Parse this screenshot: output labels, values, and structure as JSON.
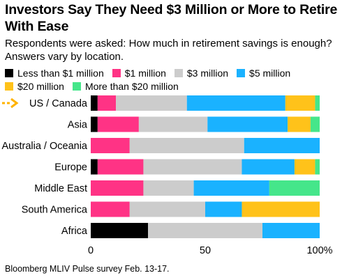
{
  "header": {
    "title": "Investors Say They Need $3 Million or More to Retire With Ease",
    "subtitle": "Respondents were asked: How much in retirement savings is enough? Answers vary by location."
  },
  "footer": {
    "source": "Bloomberg MLIV Pulse survey Feb. 13-17."
  },
  "chart_data": {
    "type": "bar",
    "orientation": "horizontal",
    "stacked": true,
    "title": "Investors Say They Need $3 Million or More to Retire With Ease",
    "subtitle": "Respondents were asked: How much in retirement savings is enough? Answers vary by location.",
    "xlabel": "",
    "ylabel": "",
    "xlim": [
      0,
      100
    ],
    "x_ticks": [
      "0",
      "50",
      "100%"
    ],
    "grid": false,
    "legend_position": "top",
    "highlighted_category": "US / Canada",
    "categories": [
      "US / Canada",
      "Asia",
      "Australia / Oceania",
      "Europe",
      "Middle East",
      "South America",
      "Africa"
    ],
    "series": [
      {
        "name": "Less than $1 million",
        "color": "#000000",
        "values": [
          3,
          3,
          0,
          3,
          0,
          0,
          25
        ]
      },
      {
        "name": "$1 million",
        "color": "#ff3385",
        "values": [
          8,
          18,
          17,
          20,
          23,
          17,
          0
        ]
      },
      {
        "name": "$3 million",
        "color": "#cccccc",
        "values": [
          31,
          30,
          50,
          43,
          22,
          33,
          50
        ]
      },
      {
        "name": "$5 million",
        "color": "#1ab2ff",
        "values": [
          43,
          35,
          33,
          23,
          33,
          16,
          25
        ]
      },
      {
        "name": "$20 million",
        "color": "#ffc21a",
        "values": [
          13,
          10,
          0,
          9,
          0,
          34,
          0
        ]
      },
      {
        "name": "More than $20 million",
        "color": "#45e68a",
        "values": [
          2,
          4,
          0,
          2,
          22,
          0,
          0
        ]
      }
    ]
  }
}
